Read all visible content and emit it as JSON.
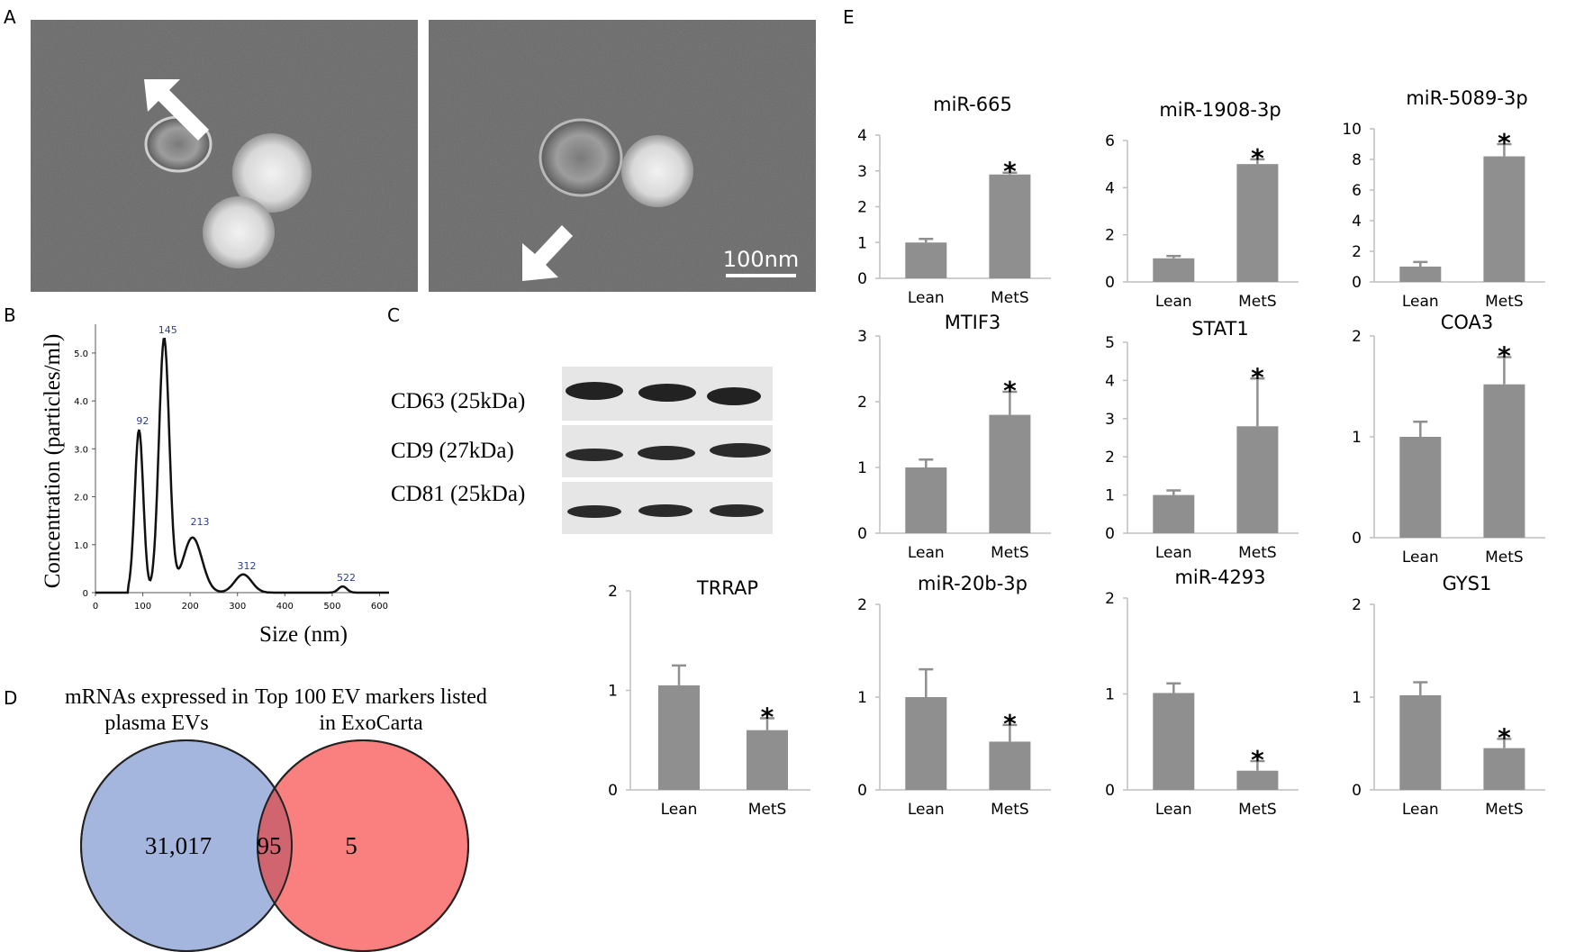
{
  "panel_labels": [
    "A",
    "B",
    "C",
    "D",
    "E"
  ],
  "panel_a": {
    "scale_bar_label": "100nm"
  },
  "panel_b": {
    "ylabel": "Concentration (particles/ml)",
    "xlabel": "Size (nm)",
    "xticks": [
      "0",
      "100",
      "200",
      "300",
      "400",
      "500",
      "600"
    ],
    "yticks": [
      "0",
      "1.0",
      "2.0",
      "3.0",
      "4.0",
      "5.0"
    ],
    "peak_labels": [
      "92",
      "145",
      "213",
      "312",
      "522"
    ]
  },
  "panel_c": {
    "bands": [
      "CD63 (25kDa)",
      "CD9 (27kDa)",
      "CD81 (25kDa)"
    ]
  },
  "panel_d": {
    "left_title_line1": "mRNAs expressed in",
    "left_title_line2": "plasma EVs",
    "right_title_line1": "Top 100 EV markers listed",
    "right_title_line2": "in ExoCarta",
    "left_only": "31,017",
    "overlap": "95",
    "right_only": "5",
    "colors": {
      "left": "#a4b6dd",
      "right": "#fa7f7f",
      "overlap": "#d0646f"
    }
  },
  "chart_data": [
    {
      "type": "line",
      "title": "",
      "xlabel": "Size (nm)",
      "ylabel": "Concentration (particles/ml)",
      "xlim": [
        0,
        620
      ],
      "ylim": [
        0,
        5.6
      ],
      "peaks": [
        {
          "x": 92,
          "y": 3.4
        },
        {
          "x": 145,
          "y": 5.3
        },
        {
          "x": 213,
          "y": 1.3
        },
        {
          "x": 312,
          "y": 0.38
        },
        {
          "x": 522,
          "y": 0.13
        }
      ]
    },
    {
      "type": "bar",
      "title": "miR-665",
      "categories": [
        "Lean",
        "MetS"
      ],
      "values": [
        1.0,
        2.9
      ],
      "errors": [
        0.1,
        0.05
      ],
      "significant": [
        false,
        true
      ],
      "ylim": [
        0,
        4
      ],
      "yticks": [
        "0",
        "1",
        "2",
        "3",
        "4"
      ]
    },
    {
      "type": "bar",
      "title": "miR-1908-3p",
      "categories": [
        "Lean",
        "MetS"
      ],
      "values": [
        1.0,
        5.0
      ],
      "errors": [
        0.1,
        0.2
      ],
      "significant": [
        false,
        true
      ],
      "ylim": [
        0,
        6
      ],
      "yticks": [
        "0",
        "2",
        "4",
        "6"
      ]
    },
    {
      "type": "bar",
      "title": "miR-5089-3p",
      "categories": [
        "Lean",
        "MetS"
      ],
      "values": [
        1.0,
        8.2
      ],
      "errors": [
        0.3,
        0.8
      ],
      "significant": [
        false,
        true
      ],
      "ylim": [
        0,
        10
      ],
      "yticks": [
        "0",
        "2",
        "4",
        "6",
        "8",
        "10"
      ]
    },
    {
      "type": "bar",
      "title": "MTIF3",
      "categories": [
        "Lean",
        "MetS"
      ],
      "values": [
        1.0,
        1.8
      ],
      "errors": [
        0.12,
        0.35
      ],
      "significant": [
        false,
        true
      ],
      "ylim": [
        0,
        3
      ],
      "yticks": [
        "0",
        "1",
        "2",
        "3"
      ]
    },
    {
      "type": "bar",
      "title": "STAT1",
      "categories": [
        "Lean",
        "MetS"
      ],
      "values": [
        1.0,
        2.8
      ],
      "errors": [
        0.12,
        1.25
      ],
      "significant": [
        false,
        true
      ],
      "ylim": [
        0,
        5
      ],
      "yticks": [
        "0",
        "1",
        "2",
        "3",
        "4",
        "5"
      ]
    },
    {
      "type": "bar",
      "title": "COA3",
      "categories": [
        "Lean",
        "MetS"
      ],
      "values": [
        1.0,
        1.52
      ],
      "errors": [
        0.15,
        0.27
      ],
      "significant": [
        false,
        true
      ],
      "ylim": [
        0,
        2
      ],
      "yticks": [
        "0",
        "1",
        "2"
      ]
    },
    {
      "type": "bar",
      "title": "TRRAP",
      "categories": [
        "Lean",
        "MetS"
      ],
      "values": [
        1.05,
        0.6
      ],
      "errors": [
        0.2,
        0.12
      ],
      "significant": [
        false,
        true
      ],
      "ylim": [
        0,
        2
      ],
      "yticks": [
        "0",
        "1",
        "2"
      ]
    },
    {
      "type": "bar",
      "title": "miR-20b-3p",
      "categories": [
        "Lean",
        "MetS"
      ],
      "values": [
        1.0,
        0.52
      ],
      "errors": [
        0.3,
        0.18
      ],
      "significant": [
        false,
        true
      ],
      "ylim": [
        0,
        2
      ],
      "yticks": [
        "0",
        "1",
        "2"
      ]
    },
    {
      "type": "bar",
      "title": "miR-4293",
      "categories": [
        "Lean",
        "MetS"
      ],
      "values": [
        1.01,
        0.2
      ],
      "errors": [
        0.1,
        0.1
      ],
      "significant": [
        false,
        true
      ],
      "ylim": [
        0,
        2
      ],
      "yticks": [
        "0",
        "1",
        "2"
      ]
    },
    {
      "type": "bar",
      "title": "GYS1",
      "categories": [
        "Lean",
        "MetS"
      ],
      "values": [
        1.02,
        0.45
      ],
      "errors": [
        0.14,
        0.1
      ],
      "significant": [
        false,
        true
      ],
      "ylim": [
        0,
        2
      ],
      "yticks": [
        "0",
        "1",
        "2"
      ]
    }
  ]
}
